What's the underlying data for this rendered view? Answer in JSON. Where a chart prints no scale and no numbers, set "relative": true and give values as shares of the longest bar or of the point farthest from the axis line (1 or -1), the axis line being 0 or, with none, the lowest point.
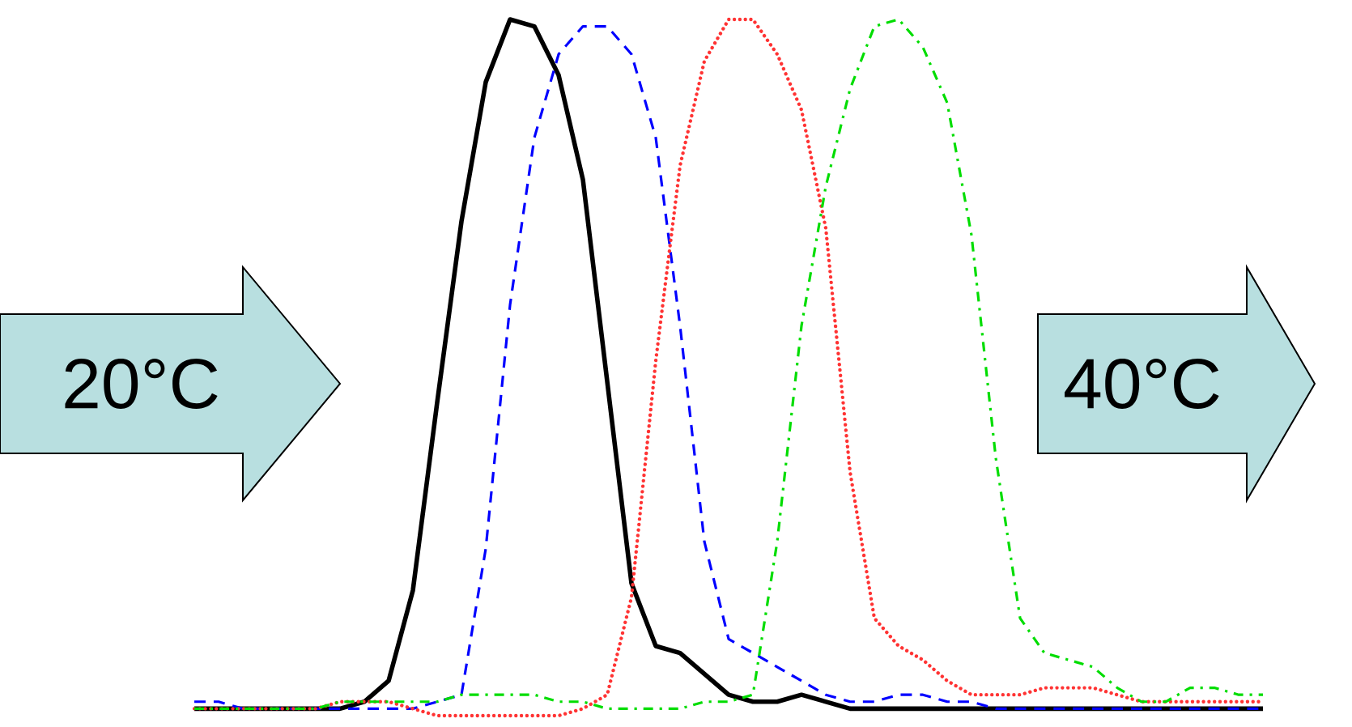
{
  "chart_data": {
    "type": "line",
    "relative": true,
    "categories": [
      null,
      null,
      null,
      null,
      null,
      null,
      null,
      null,
      null,
      null,
      null,
      null,
      null,
      null,
      null,
      null,
      null,
      null,
      null,
      null,
      null,
      null,
      null,
      null,
      null,
      null,
      null,
      null,
      null,
      null,
      null,
      null,
      null,
      null,
      null,
      null,
      null,
      null,
      null,
      null,
      null,
      null,
      null,
      null,
      null
    ],
    "series": [
      {
        "color": "#000000",
        "line_style": "solid",
        "values": [
          0.01,
          0.01,
          0.01,
          0.01,
          0.01,
          0.01,
          0.01,
          0.02,
          0.05,
          0.18,
          0.45,
          0.71,
          0.91,
          1.0,
          0.99,
          0.92,
          0.77,
          0.48,
          0.19,
          0.1,
          0.09,
          0.06,
          0.03,
          0.02,
          0.02,
          0.03,
          0.02,
          0.01,
          0.01,
          0.01,
          0.01,
          0.01,
          0.01,
          0.01,
          0.01,
          0.01,
          0.01,
          0.01,
          0.01,
          0.01,
          0.01,
          0.01,
          0.01,
          0.01,
          0.01
        ]
      },
      {
        "color": "#0000ff",
        "line_style": "dashed",
        "values": [
          0.02,
          0.02,
          0.01,
          0.01,
          0.01,
          0.01,
          0.01,
          0.01,
          0.01,
          0.01,
          0.02,
          0.03,
          0.24,
          0.59,
          0.83,
          0.95,
          0.99,
          0.99,
          0.95,
          0.83,
          0.56,
          0.25,
          0.11,
          0.09,
          0.07,
          0.05,
          0.03,
          0.02,
          0.02,
          0.03,
          0.03,
          0.02,
          0.02,
          0.01,
          0.01,
          0.01,
          0.01,
          0.01,
          0.01,
          0.01,
          0.01,
          0.01,
          0.01,
          0.01,
          0.01
        ]
      },
      {
        "color": "#ff3333",
        "line_style": "dotted",
        "values": [
          0.01,
          0.01,
          0.01,
          0.01,
          0.01,
          0.01,
          0.02,
          0.02,
          0.02,
          0.01,
          0.0,
          0.0,
          0.0,
          0.0,
          0.0,
          0.0,
          0.01,
          0.03,
          0.17,
          0.51,
          0.79,
          0.94,
          1.0,
          1.0,
          0.95,
          0.87,
          0.7,
          0.35,
          0.14,
          0.1,
          0.08,
          0.05,
          0.03,
          0.03,
          0.03,
          0.04,
          0.04,
          0.04,
          0.03,
          0.02,
          0.02,
          0.02,
          0.02,
          0.02,
          0.02
        ]
      },
      {
        "color": "#00dd00",
        "line_style": "dashdot",
        "values": [
          0.01,
          0.01,
          0.01,
          0.01,
          0.01,
          0.01,
          0.02,
          0.02,
          0.02,
          0.02,
          0.02,
          0.03,
          0.03,
          0.03,
          0.03,
          0.02,
          0.02,
          0.01,
          0.01,
          0.01,
          0.01,
          0.02,
          0.02,
          0.03,
          0.25,
          0.56,
          0.76,
          0.9,
          0.99,
          1.0,
          0.96,
          0.88,
          0.69,
          0.37,
          0.14,
          0.09,
          0.08,
          0.07,
          0.04,
          0.02,
          0.02,
          0.04,
          0.04,
          0.03,
          0.03
        ]
      }
    ],
    "annotations": [
      "20°C",
      "40°C"
    ]
  }
}
